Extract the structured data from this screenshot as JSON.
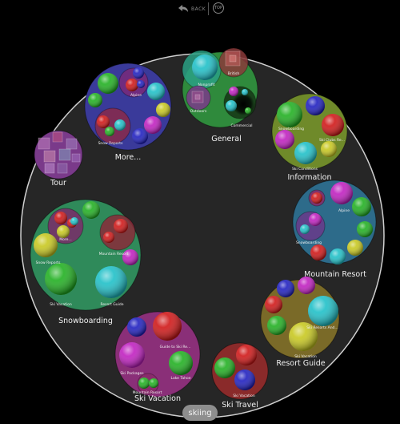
{
  "nav": {
    "back_label": "BACK",
    "top_label": "TOP"
  },
  "root": {
    "label": "skiing"
  },
  "groups": [
    {
      "id": "general",
      "label": "General",
      "color": "#2f8a3c",
      "subs": [
        {
          "label": "Nonprofit"
        },
        {
          "label": "British"
        },
        {
          "label": "Outdoors"
        },
        {
          "label": "Commercial"
        }
      ]
    },
    {
      "id": "information",
      "label": "Information",
      "color": "#6f8a2a",
      "subs": [
        {
          "label": "Snowboarding"
        },
        {
          "label": "Ski Clubs Re..."
        },
        {
          "label": "Ski Conditions"
        }
      ]
    },
    {
      "id": "mountain-resort",
      "label": "Mountain Resort",
      "color": "#2d6b8a",
      "subs": [
        {
          "label": "Alpine"
        },
        {
          "label": "Snowboarding"
        }
      ]
    },
    {
      "id": "resort-guide",
      "label": "Resort Guide",
      "color": "#7a6a28",
      "subs": [
        {
          "label": "Ski Resorts And..."
        },
        {
          "label": "Ski Vacation"
        }
      ]
    },
    {
      "id": "ski-travel",
      "label": "Ski Travel",
      "color": "#8a2a2a",
      "subs": [
        {
          "label": "Ski Vacation"
        }
      ]
    },
    {
      "id": "ski-vacation",
      "label": "Ski Vacation",
      "color": "#8a2f78",
      "subs": [
        {
          "label": "Guide to Ski Re..."
        },
        {
          "label": "Ski Packages"
        },
        {
          "label": "Lake Tahoe"
        },
        {
          "label": "Mountain Resort"
        }
      ]
    },
    {
      "id": "snowboarding",
      "label": "Snowboarding",
      "color": "#2f8a5a",
      "subs": [
        {
          "label": "More..."
        },
        {
          "label": "Snow Reports"
        },
        {
          "label": "Mountain Resort"
        },
        {
          "label": "Ski Vacation"
        },
        {
          "label": "Resort Guide"
        }
      ]
    },
    {
      "id": "tour",
      "label": "Tour",
      "color": "#7a3a8a",
      "subs": []
    },
    {
      "id": "more",
      "label": "More...",
      "color": "#3a3a9a",
      "subs": [
        {
          "label": "Alpine"
        },
        {
          "label": "Snow Reports"
        }
      ]
    }
  ],
  "colors": {
    "background": "#000000",
    "outer_circle": "#262626",
    "outer_stroke": "#c8c8c8",
    "ball_green": "#22b022",
    "ball_cyan": "#20c0c8",
    "ball_red": "#d01818",
    "ball_blue": "#2020c0",
    "ball_magenta": "#c020c0",
    "ball_yellow": "#c8c820"
  }
}
